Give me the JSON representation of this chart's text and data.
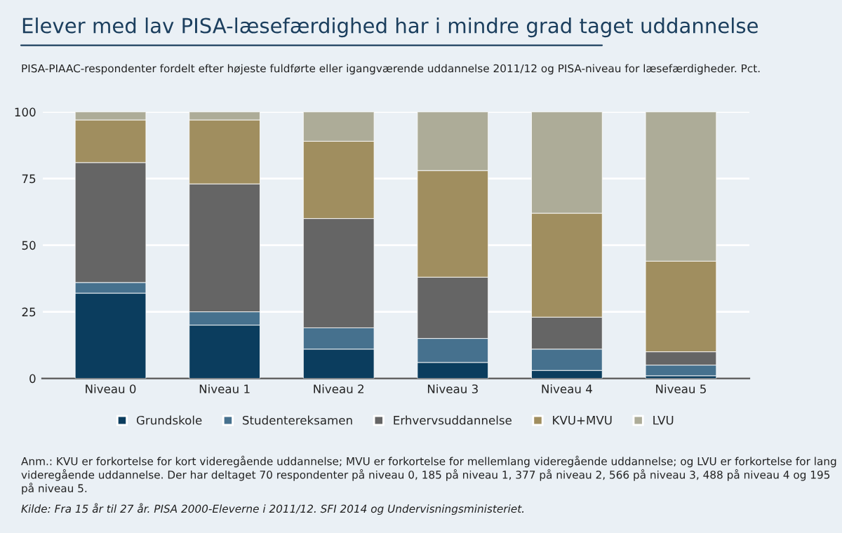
{
  "chart_data": {
    "type": "bar",
    "stacked": true,
    "title": "Elever med lav PISA-læsefærdighed har i mindre grad taget uddannelse",
    "subtitle": "PISA-PIAAC-respondenter fordelt efter højeste fuldførte eller igangværende uddannelse 2011/12 og PISA-niveau for læsefærdigheder. Pct.",
    "categories": [
      "Niveau 0",
      "Niveau 1",
      "Niveau 2",
      "Niveau 3",
      "Niveau 4",
      "Niveau 5"
    ],
    "series": [
      {
        "name": "Grundskole",
        "color": "#0b3d5e",
        "values": [
          32,
          20,
          11,
          6,
          3,
          1
        ]
      },
      {
        "name": "Studentereksamen",
        "color": "#46718e",
        "values": [
          4,
          5,
          8,
          9,
          8,
          4
        ]
      },
      {
        "name": "Erhvervsuddannelse",
        "color": "#656565",
        "values": [
          45,
          48,
          41,
          23,
          12,
          5
        ]
      },
      {
        "name": "KVU+MVU",
        "color": "#a08e5f",
        "values": [
          16,
          24,
          29,
          40,
          39,
          34
        ]
      },
      {
        "name": "LVU",
        "color": "#adac98",
        "values": [
          3,
          3,
          11,
          22,
          38,
          56
        ]
      }
    ],
    "ylim": [
      0,
      100
    ],
    "yticks": [
      0,
      25,
      50,
      75,
      100
    ],
    "grid": "y",
    "legend": "bottom",
    "annotations": [
      "Anm.: KVU er forkortelse for kort videregående uddannelse; MVU er forkortelse for mellemlang videregående uddannelse; og LVU er forkortelse for lang videregående uddannelse. Der har deltaget 70 respondenter på niveau 0, 185 på niveau 1, 377 på niveau 2, 566 på niveau 3, 488 på niveau 4 og 195 på niveau 5.",
      "Kilde: Fra 15 år til 27 år. PISA 2000-Eleverne i 2011/12. SFI 2014 og Undervisningsministeriet."
    ]
  }
}
